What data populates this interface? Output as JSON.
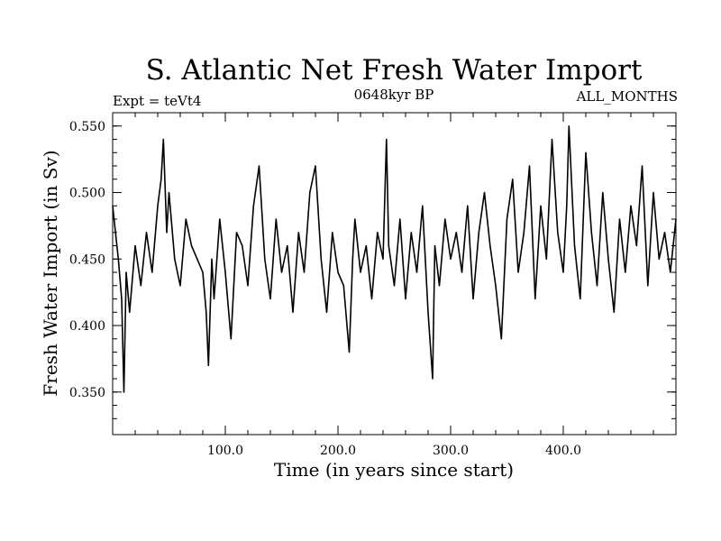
{
  "chart_data": {
    "type": "line",
    "title": "S. Atlantic Net Fresh Water Import",
    "subtitle_left": "Expt = teVt4",
    "subtitle_center": "0648kyr BP",
    "subtitle_right": "ALL_MONTHS",
    "xlabel": "Time (in years since start)",
    "ylabel": "Fresh Water Import (in Sv)",
    "xlim": [
      0,
      500
    ],
    "ylim": [
      0.318,
      0.56
    ],
    "x_ticks": [
      {
        "value": 100,
        "label": "100.0"
      },
      {
        "value": 200,
        "label": "200.0"
      },
      {
        "value": 300,
        "label": "300.0"
      },
      {
        "value": 400,
        "label": "400.0"
      }
    ],
    "y_ticks": [
      {
        "value": 0.35,
        "label": "0.350"
      },
      {
        "value": 0.4,
        "label": "0.400"
      },
      {
        "value": 0.45,
        "label": "0.450"
      },
      {
        "value": 0.5,
        "label": "0.500"
      },
      {
        "value": 0.55,
        "label": "0.550"
      }
    ],
    "grid": false,
    "color": "#000000",
    "series": [
      {
        "x": [
          0,
          5,
          8,
          10,
          12,
          15,
          20,
          25,
          30,
          35,
          40,
          43,
          45,
          48,
          50,
          55,
          60,
          65,
          70,
          75,
          80,
          83,
          85,
          88,
          90,
          95,
          100,
          105,
          110,
          115,
          120,
          125,
          130,
          135,
          140,
          145,
          150,
          155,
          160,
          165,
          170,
          175,
          180,
          185,
          190,
          195,
          200,
          205,
          210,
          213,
          215,
          220,
          225,
          230,
          235,
          240,
          243,
          245,
          250,
          255,
          260,
          265,
          270,
          275,
          280,
          284,
          286,
          290,
          295,
          300,
          305,
          310,
          315,
          320,
          325,
          330,
          335,
          340,
          345,
          350,
          355,
          360,
          365,
          370,
          375,
          380,
          385,
          390,
          395,
          400,
          403,
          405,
          410,
          415,
          420,
          425,
          430,
          435,
          440,
          445,
          450,
          455,
          460,
          465,
          470,
          475,
          480,
          485,
          490,
          495,
          500
        ],
        "y": [
          0.49,
          0.45,
          0.42,
          0.35,
          0.44,
          0.41,
          0.46,
          0.43,
          0.47,
          0.44,
          0.49,
          0.51,
          0.54,
          0.47,
          0.5,
          0.45,
          0.43,
          0.48,
          0.46,
          0.45,
          0.44,
          0.41,
          0.37,
          0.45,
          0.42,
          0.48,
          0.44,
          0.39,
          0.47,
          0.46,
          0.43,
          0.49,
          0.52,
          0.45,
          0.42,
          0.48,
          0.44,
          0.46,
          0.41,
          0.47,
          0.44,
          0.5,
          0.52,
          0.45,
          0.41,
          0.47,
          0.44,
          0.43,
          0.38,
          0.45,
          0.48,
          0.44,
          0.46,
          0.42,
          0.47,
          0.45,
          0.54,
          0.46,
          0.43,
          0.48,
          0.42,
          0.47,
          0.44,
          0.49,
          0.41,
          0.36,
          0.46,
          0.43,
          0.48,
          0.45,
          0.47,
          0.44,
          0.49,
          0.42,
          0.47,
          0.5,
          0.46,
          0.43,
          0.39,
          0.48,
          0.51,
          0.44,
          0.47,
          0.52,
          0.42,
          0.49,
          0.45,
          0.54,
          0.47,
          0.44,
          0.49,
          0.55,
          0.46,
          0.42,
          0.53,
          0.47,
          0.43,
          0.5,
          0.45,
          0.41,
          0.48,
          0.44,
          0.49,
          0.46,
          0.52,
          0.43,
          0.5,
          0.45,
          0.47,
          0.44,
          0.48
        ]
      }
    ]
  }
}
